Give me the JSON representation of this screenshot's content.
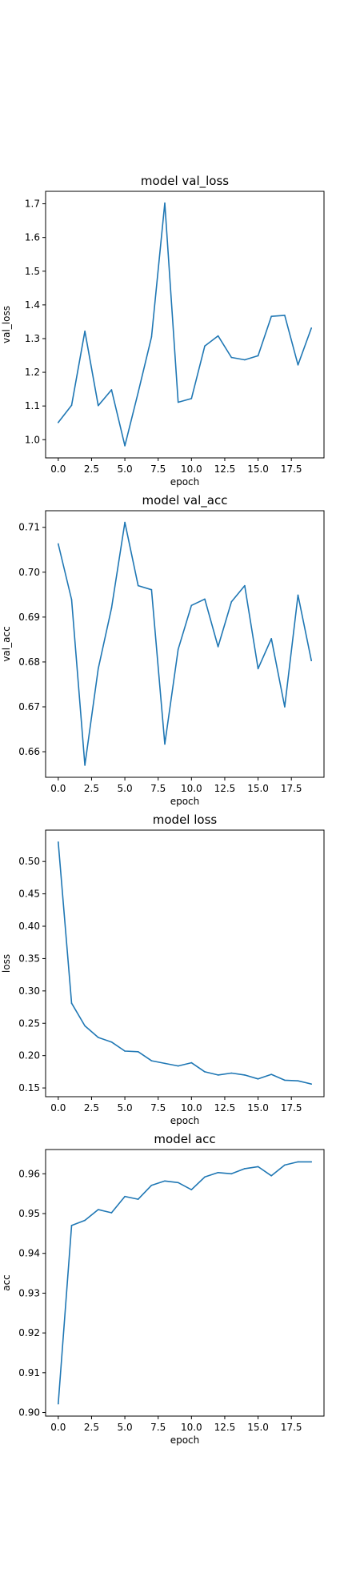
{
  "chart_data": [
    {
      "type": "line",
      "title": "model val_loss",
      "xlabel": "epoch",
      "ylabel": "val_loss",
      "xlim": [
        -0.95,
        19.95
      ],
      "ylim": [
        0.946,
        1.737
      ],
      "xticks": [
        "0.0",
        "2.5",
        "5.0",
        "7.5",
        "10.0",
        "12.5",
        "15.0",
        "17.5"
      ],
      "yticks": [
        "1.0",
        "1.1",
        "1.2",
        "1.3",
        "1.4",
        "1.5",
        "1.6",
        "1.7"
      ],
      "grid": false,
      "color": "#1f77b4",
      "x": [
        0,
        1,
        2,
        3,
        4,
        5,
        6,
        7,
        8,
        9,
        10,
        11,
        12,
        13,
        14,
        15,
        16,
        17,
        18,
        19
      ],
      "values": [
        1.051,
        1.102,
        1.322,
        1.101,
        1.148,
        0.982,
        1.14,
        1.305,
        1.702,
        1.111,
        1.122,
        1.278,
        1.308,
        1.244,
        1.237,
        1.249,
        1.366,
        1.369,
        1.222,
        1.331
      ]
    },
    {
      "type": "line",
      "title": "model val_acc",
      "xlabel": "epoch",
      "ylabel": "val_acc",
      "xlim": [
        -0.95,
        19.95
      ],
      "ylim": [
        0.6543,
        0.7137
      ],
      "xticks": [
        "0.0",
        "2.5",
        "5.0",
        "7.5",
        "10.0",
        "12.5",
        "15.0",
        "17.5"
      ],
      "yticks": [
        "0.66",
        "0.67",
        "0.68",
        "0.69",
        "0.70",
        "0.71"
      ],
      "grid": false,
      "color": "#1f77b4",
      "x": [
        0,
        1,
        2,
        3,
        4,
        5,
        6,
        7,
        8,
        9,
        10,
        11,
        12,
        13,
        14,
        15,
        16,
        17,
        18,
        19
      ],
      "values": [
        0.7063,
        0.6939,
        0.657,
        0.6785,
        0.692,
        0.7111,
        0.697,
        0.6961,
        0.6617,
        0.6828,
        0.6926,
        0.694,
        0.6834,
        0.6934,
        0.697,
        0.6785,
        0.6852,
        0.67,
        0.6949,
        0.6803
      ]
    },
    {
      "type": "line",
      "title": "model loss",
      "xlabel": "epoch",
      "ylabel": "loss",
      "xlim": [
        -0.95,
        19.95
      ],
      "ylim": [
        0.1365,
        0.5485
      ],
      "xticks": [
        "0.0",
        "2.5",
        "5.0",
        "7.5",
        "10.0",
        "12.5",
        "15.0",
        "17.5"
      ],
      "yticks": [
        "0.15",
        "0.20",
        "0.25",
        "0.30",
        "0.35",
        "0.40",
        "0.45",
        "0.50"
      ],
      "grid": false,
      "color": "#1f77b4",
      "x": [
        0,
        1,
        2,
        3,
        4,
        5,
        6,
        7,
        8,
        9,
        10,
        11,
        12,
        13,
        14,
        15,
        16,
        17,
        18,
        19
      ],
      "values": [
        0.53,
        0.281,
        0.246,
        0.228,
        0.221,
        0.207,
        0.206,
        0.192,
        0.188,
        0.184,
        0.189,
        0.175,
        0.17,
        0.173,
        0.17,
        0.164,
        0.171,
        0.162,
        0.161,
        0.156
      ]
    },
    {
      "type": "line",
      "title": "model acc",
      "xlabel": "epoch",
      "ylabel": "acc",
      "xlim": [
        -0.95,
        19.95
      ],
      "ylim": [
        0.8991,
        0.9661
      ],
      "xticks": [
        "0.0",
        "2.5",
        "5.0",
        "7.5",
        "10.0",
        "12.5",
        "15.0",
        "17.5"
      ],
      "yticks": [
        "0.90",
        "0.91",
        "0.92",
        "0.93",
        "0.94",
        "0.95",
        "0.96"
      ],
      "grid": false,
      "color": "#1f77b4",
      "x": [
        0,
        1,
        2,
        3,
        4,
        5,
        6,
        7,
        8,
        9,
        10,
        11,
        12,
        13,
        14,
        15,
        16,
        17,
        18,
        19
      ],
      "values": [
        0.9022,
        0.947,
        0.9483,
        0.951,
        0.9502,
        0.9543,
        0.9536,
        0.9571,
        0.9582,
        0.9578,
        0.956,
        0.9592,
        0.9603,
        0.96,
        0.9613,
        0.9618,
        0.9595,
        0.9622,
        0.963,
        0.963
      ]
    }
  ]
}
